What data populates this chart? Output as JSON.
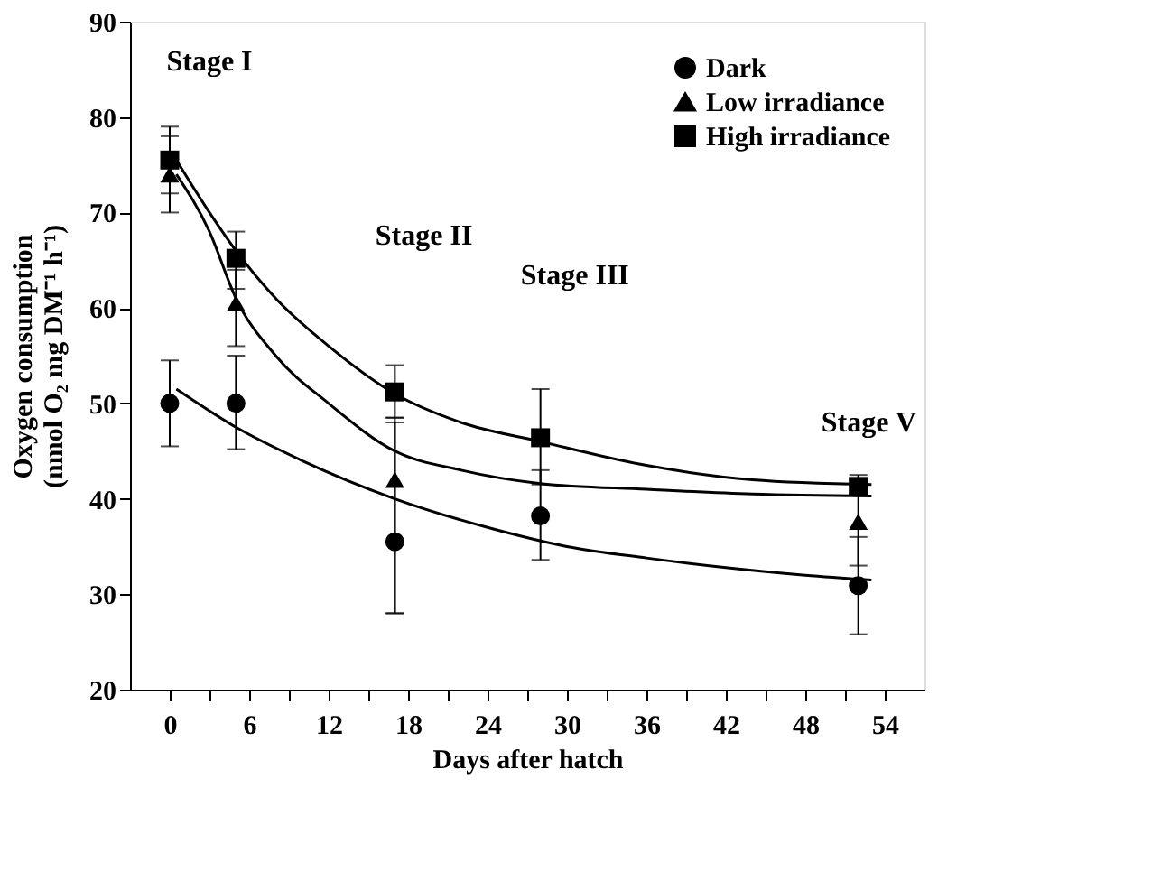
{
  "chart_data": {
    "type": "scatter",
    "xlabel": "Days after hatch",
    "ylabel": "Oxygen consumption\n(nmol O₂ mg DM⁻¹ h⁻¹)",
    "x": [
      0,
      5,
      17,
      28,
      52
    ],
    "series": [
      {
        "name": "Dark",
        "color": "#000000",
        "marker": "circle",
        "values": [
          50,
          50,
          35.5,
          38.2,
          30.9
        ],
        "errors": [
          [
            45.5,
            54.5
          ],
          [
            45.2,
            55
          ],
          [
            28,
            48.5
          ],
          [
            33.6,
            43
          ],
          [
            25.8,
            36
          ]
        ]
      },
      {
        "name": "Low irradiance",
        "color": "#000000",
        "marker": "triangle",
        "values": [
          74,
          60.5,
          42,
          null,
          37.6
        ],
        "errors": [
          [
            70,
            78
          ],
          [
            56,
            64
          ],
          [
            28,
            48
          ],
          null,
          [
            33,
            42
          ]
        ]
      },
      {
        "name": "High irradiance",
        "color": "#000000",
        "marker": "square",
        "values": [
          75.5,
          65.2,
          51.2,
          46.4,
          41.3
        ],
        "errors": [
          [
            72,
            79
          ],
          [
            62,
            68
          ],
          [
            48.5,
            54
          ],
          [
            41.5,
            51.5
          ],
          [
            40.5,
            42.5
          ]
        ]
      },
      {
        "type": "line",
        "color": "#000000",
        "marker": "none",
        "x": [
          0.5,
          5,
          10,
          17,
          24,
          30,
          36,
          42,
          48,
          53
        ],
        "values": [
          51.5,
          47.5,
          44,
          40,
          37,
          35,
          33.8,
          32.8,
          32,
          31.5
        ]
      },
      {
        "type": "line",
        "color": "#000000",
        "marker": "none",
        "x": [
          0.5,
          3,
          5,
          8,
          12,
          17,
          22,
          28,
          36,
          44,
          53
        ],
        "values": [
          74,
          68,
          61,
          55,
          50,
          45,
          43,
          41.6,
          41,
          40.5,
          40.3
        ]
      },
      {
        "type": "line",
        "color": "#000000",
        "marker": "none",
        "x": [
          0.5,
          3,
          5,
          8,
          12,
          17,
          22,
          28,
          36,
          44,
          53
        ],
        "values": [
          75.5,
          70,
          66,
          61,
          56,
          51,
          48,
          46,
          43.5,
          42,
          41.5
        ]
      }
    ],
    "xlim": [
      -3,
      57
    ],
    "xticks": [
      0,
      {
        "value": 3,
        "label": null
      },
      6,
      {
        "value": 9,
        "label": null
      },
      12,
      {
        "value": 15,
        "label": null
      },
      18,
      {
        "value": 21,
        "label": null
      },
      24,
      {
        "value": 27,
        "label": null
      },
      30,
      {
        "value": 33,
        "label": null
      },
      36,
      {
        "value": 39,
        "label": null
      },
      42,
      {
        "value": 45,
        "label": null
      },
      48,
      {
        "value": 51,
        "label": null
      },
      54
    ],
    "ylim": [
      20,
      90
    ],
    "yticks": [
      20,
      30,
      40,
      50,
      60,
      70,
      80,
      90
    ],
    "annotations": [
      "Stage I",
      "Stage II",
      "Stage III",
      "Stage V"
    ],
    "legend": "top right",
    "grid": false
  }
}
